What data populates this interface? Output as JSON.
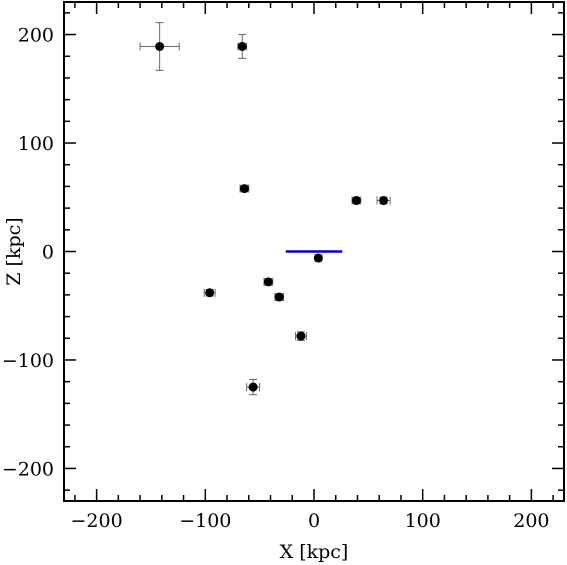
{
  "chart_data": {
    "type": "scatter",
    "title": "",
    "xlabel": "X [kpc]",
    "ylabel": "Z [kpc]",
    "xlim": [
      -230,
      230
    ],
    "ylim": [
      -230,
      230
    ],
    "xticks": [
      -200,
      -100,
      0,
      100,
      200
    ],
    "yticks": [
      -200,
      -100,
      0,
      100,
      200
    ],
    "grid": false,
    "marker_color": "#000000",
    "errorbar_color": "#666666",
    "disk_color": "#0000cc",
    "disk_segment": {
      "x": [
        -26,
        26
      ],
      "z": 0
    },
    "points": [
      {
        "x": -142,
        "z": 189,
        "xerr": 18,
        "zerr": 22
      },
      {
        "x": -66,
        "z": 189,
        "xerr": 4,
        "zerr": 11
      },
      {
        "x": -64,
        "z": 58,
        "xerr": 4,
        "zerr": 3
      },
      {
        "x": 39,
        "z": 47,
        "xerr": 4,
        "zerr": 3
      },
      {
        "x": 64,
        "z": 47,
        "xerr": 6,
        "zerr": 3
      },
      {
        "x": 4,
        "z": -6,
        "xerr": 3,
        "zerr": 2
      },
      {
        "x": -96,
        "z": -38,
        "xerr": 5,
        "zerr": 3
      },
      {
        "x": -42,
        "z": -28,
        "xerr": 4,
        "zerr": 3
      },
      {
        "x": -32,
        "z": -42,
        "xerr": 4,
        "zerr": 3
      },
      {
        "x": -12,
        "z": -78,
        "xerr": 5,
        "zerr": 4
      },
      {
        "x": -56,
        "z": -125,
        "xerr": 6,
        "zerr": 7
      }
    ]
  }
}
